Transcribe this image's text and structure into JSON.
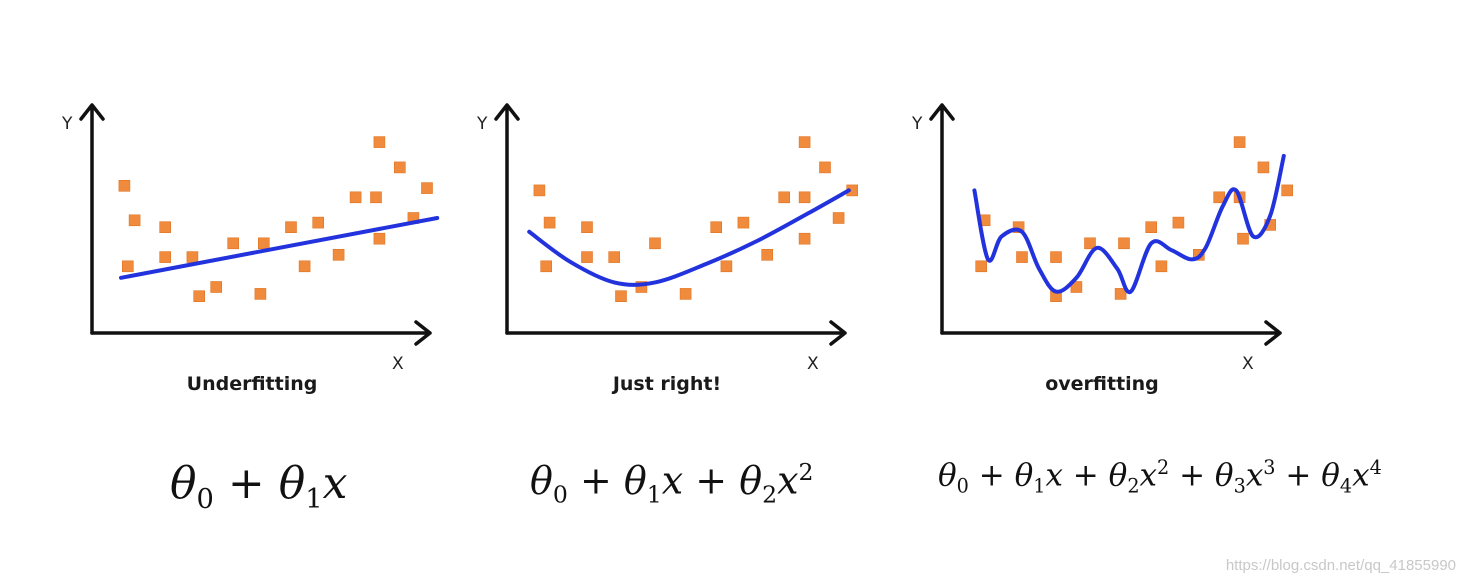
{
  "colors": {
    "points": "#f08a3c",
    "curve": "#2233dd",
    "axes": "#111111"
  },
  "chart_data": [
    {
      "type": "scatter",
      "title": "Underfitting",
      "xlabel": "X",
      "ylabel": "Y",
      "xlim": [
        0,
        10
      ],
      "ylim": [
        0,
        10
      ],
      "grid": false,
      "points": [
        {
          "x": 0.6,
          "y": 6.4
        },
        {
          "x": 0.9,
          "y": 4.9
        },
        {
          "x": 0.7,
          "y": 2.9
        },
        {
          "x": 1.8,
          "y": 4.6
        },
        {
          "x": 1.8,
          "y": 3.3
        },
        {
          "x": 2.6,
          "y": 3.3
        },
        {
          "x": 2.8,
          "y": 1.6
        },
        {
          "x": 3.3,
          "y": 2.0
        },
        {
          "x": 3.8,
          "y": 3.9
        },
        {
          "x": 4.6,
          "y": 1.7
        },
        {
          "x": 4.7,
          "y": 3.9
        },
        {
          "x": 5.5,
          "y": 4.6
        },
        {
          "x": 5.9,
          "y": 2.9
        },
        {
          "x": 6.3,
          "y": 4.8
        },
        {
          "x": 6.9,
          "y": 3.4
        },
        {
          "x": 7.4,
          "y": 5.9
        },
        {
          "x": 8.0,
          "y": 5.9
        },
        {
          "x": 8.1,
          "y": 4.1
        },
        {
          "x": 8.1,
          "y": 8.3
        },
        {
          "x": 8.7,
          "y": 7.2
        },
        {
          "x": 9.1,
          "y": 5.0
        },
        {
          "x": 9.5,
          "y": 6.3
        }
      ],
      "fit_curve": {
        "x": [
          0.5,
          9.8
        ],
        "y": [
          2.4,
          5.0
        ]
      }
    },
    {
      "type": "scatter",
      "title": "Just right!",
      "xlabel": "X",
      "ylabel": "Y",
      "xlim": [
        0,
        10
      ],
      "ylim": [
        0,
        10
      ],
      "grid": false,
      "points": [
        {
          "x": 0.6,
          "y": 6.2
        },
        {
          "x": 0.9,
          "y": 4.8
        },
        {
          "x": 0.8,
          "y": 2.9
        },
        {
          "x": 2.0,
          "y": 4.6
        },
        {
          "x": 2.0,
          "y": 3.3
        },
        {
          "x": 2.8,
          "y": 3.3
        },
        {
          "x": 3.0,
          "y": 1.6
        },
        {
          "x": 3.6,
          "y": 2.0
        },
        {
          "x": 4.0,
          "y": 3.9
        },
        {
          "x": 4.9,
          "y": 1.7
        },
        {
          "x": 5.8,
          "y": 4.6
        },
        {
          "x": 6.1,
          "y": 2.9
        },
        {
          "x": 6.6,
          "y": 4.8
        },
        {
          "x": 7.3,
          "y": 3.4
        },
        {
          "x": 7.8,
          "y": 5.9
        },
        {
          "x": 8.4,
          "y": 5.9
        },
        {
          "x": 8.4,
          "y": 4.1
        },
        {
          "x": 8.4,
          "y": 8.3
        },
        {
          "x": 9.0,
          "y": 7.2
        },
        {
          "x": 9.4,
          "y": 5.0
        },
        {
          "x": 9.8,
          "y": 6.2
        }
      ],
      "fit_curve": {
        "x": [
          0.3,
          1.5,
          2.8,
          4.0,
          5.5,
          7.0,
          8.5,
          9.7
        ],
        "y": [
          4.4,
          3.1,
          2.2,
          2.2,
          3.0,
          4.0,
          5.2,
          6.2
        ]
      }
    },
    {
      "type": "scatter",
      "title": "overfitting",
      "xlabel": "X",
      "ylabel": "Y",
      "xlim": [
        0,
        10
      ],
      "ylim": [
        0,
        10
      ],
      "grid": false,
      "points": [
        {
          "x": 0.9,
          "y": 4.9
        },
        {
          "x": 0.8,
          "y": 2.9
        },
        {
          "x": 1.9,
          "y": 4.6
        },
        {
          "x": 2.0,
          "y": 3.3
        },
        {
          "x": 3.0,
          "y": 3.3
        },
        {
          "x": 3.0,
          "y": 1.6
        },
        {
          "x": 3.6,
          "y": 2.0
        },
        {
          "x": 4.0,
          "y": 3.9
        },
        {
          "x": 4.9,
          "y": 1.7
        },
        {
          "x": 5.0,
          "y": 3.9
        },
        {
          "x": 5.8,
          "y": 4.6
        },
        {
          "x": 6.1,
          "y": 2.9
        },
        {
          "x": 6.6,
          "y": 4.8
        },
        {
          "x": 7.2,
          "y": 3.4
        },
        {
          "x": 7.8,
          "y": 5.9
        },
        {
          "x": 8.4,
          "y": 5.9
        },
        {
          "x": 8.5,
          "y": 4.1
        },
        {
          "x": 8.4,
          "y": 8.3
        },
        {
          "x": 9.1,
          "y": 7.2
        },
        {
          "x": 9.3,
          "y": 4.7
        },
        {
          "x": 9.8,
          "y": 6.2
        }
      ],
      "fit_curve": {
        "x": [
          0.6,
          1.0,
          1.4,
          2.0,
          2.5,
          3.0,
          3.6,
          4.2,
          4.8,
          5.2,
          5.8,
          6.4,
          7.0,
          7.4,
          7.9,
          8.3,
          8.8,
          9.3,
          9.7
        ],
        "y": [
          6.2,
          3.2,
          4.2,
          4.4,
          2.8,
          1.8,
          2.4,
          3.7,
          2.8,
          1.8,
          3.9,
          3.6,
          3.2,
          3.7,
          5.5,
          6.2,
          4.2,
          5.1,
          7.7
        ]
      }
    }
  ],
  "formulas": [
    {
      "parts": [
        {
          "v": "θ",
          "s": "0"
        },
        {
          "op": "+"
        },
        {
          "v": "θ",
          "s": "1"
        },
        {
          "v": "x"
        }
      ]
    },
    {
      "parts": [
        {
          "v": "θ",
          "s": "0"
        },
        {
          "op": "+"
        },
        {
          "v": "θ",
          "s": "1"
        },
        {
          "v": "x"
        },
        {
          "op": "+"
        },
        {
          "v": "θ",
          "s": "2"
        },
        {
          "v": "x",
          "p": "2"
        }
      ]
    },
    {
      "parts": [
        {
          "v": "θ",
          "s": "0"
        },
        {
          "op": "+"
        },
        {
          "v": "θ",
          "s": "1"
        },
        {
          "v": "x"
        },
        {
          "op": "+"
        },
        {
          "v": "θ",
          "s": "2"
        },
        {
          "v": "x",
          "p": "2"
        },
        {
          "op": "+"
        },
        {
          "v": "θ",
          "s": "3"
        },
        {
          "v": "x",
          "p": "3"
        },
        {
          "op": "+"
        },
        {
          "v": "θ",
          "s": "4"
        },
        {
          "v": "x",
          "p": "4"
        }
      ]
    }
  ],
  "watermark": "https://blog.csdn.net/qq_41855990"
}
